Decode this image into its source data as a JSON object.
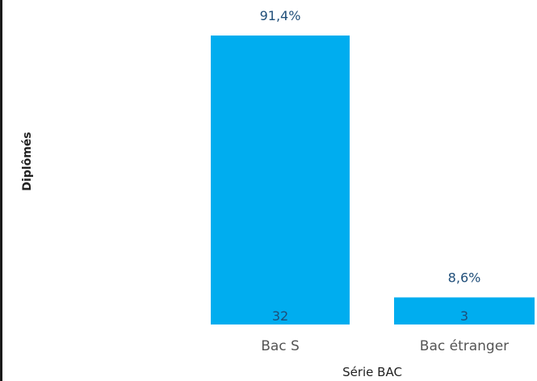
{
  "chart_data": {
    "type": "bar",
    "categories": [
      "Bac S",
      "Bac étranger"
    ],
    "values": [
      32,
      3
    ],
    "percent_labels": [
      "91,4%",
      "8,6%"
    ],
    "value_labels": [
      "32",
      "3"
    ],
    "xlabel": "Série BAC",
    "ylabel": "Diplômés",
    "ylim": [
      0,
      35
    ],
    "bar_color": "#00adef"
  }
}
